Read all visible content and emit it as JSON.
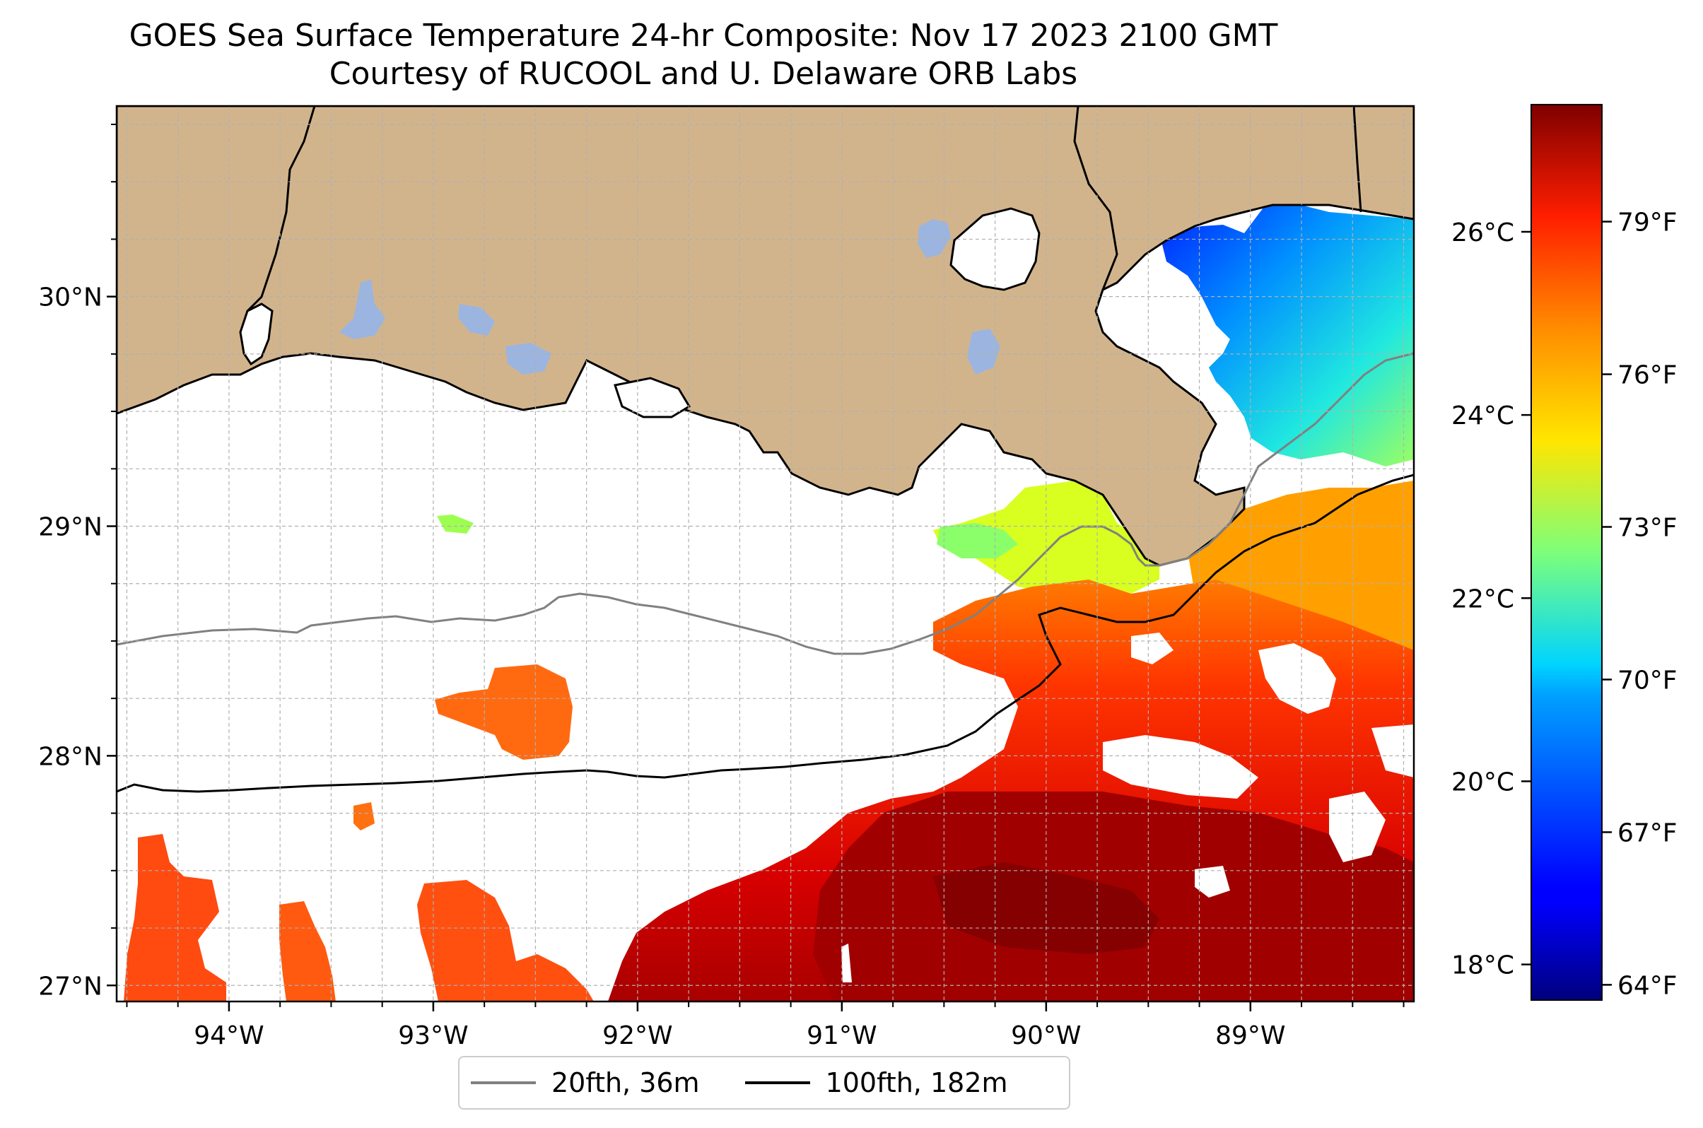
{
  "title": "GOES Sea Surface Temperature 24-hr Composite: Nov 17 2023 2100 GMT",
  "subtitle": "Courtesy of RUCOOL and U. Delaware ORB Labs",
  "colors": {
    "land": "#d2b48c",
    "lakes": "#9bb5e0",
    "coastline": "#000000",
    "isobath_20fth": "#808080",
    "isobath_100fth": "#000000",
    "grid": "#b0b0b0"
  },
  "map": {
    "lon_range": [
      -94.55,
      -88.2
    ],
    "lat_range": [
      26.93,
      30.83
    ],
    "lon_ticks": [
      {
        "value": -94,
        "label": "94°W"
      },
      {
        "value": -93,
        "label": "93°W"
      },
      {
        "value": -92,
        "label": "92°W"
      },
      {
        "value": -91,
        "label": "91°W"
      },
      {
        "value": -90,
        "label": "90°W"
      },
      {
        "value": -89,
        "label": "89°W"
      }
    ],
    "lat_ticks": [
      {
        "value": 30,
        "label": "30°N"
      },
      {
        "value": 29,
        "label": "29°N"
      },
      {
        "value": 28,
        "label": "28°N"
      },
      {
        "value": 27,
        "label": "27°N"
      }
    ],
    "gridlines": true
  },
  "colorbar": {
    "colormap": "jet",
    "fahrenheit_ticks": [
      {
        "value": 64,
        "label": "64°F"
      },
      {
        "value": 67,
        "label": "67°F"
      },
      {
        "value": 70,
        "label": "70°F"
      },
      {
        "value": 73,
        "label": "73°F"
      },
      {
        "value": 76,
        "label": "76°F"
      },
      {
        "value": 79,
        "label": "79°F"
      }
    ],
    "celsius_ticks": [
      {
        "value": 18,
        "label": "18°C"
      },
      {
        "value": 20,
        "label": "20°C"
      },
      {
        "value": 22,
        "label": "22°C"
      },
      {
        "value": 24,
        "label": "24°C"
      },
      {
        "value": 26,
        "label": "26°C"
      }
    ],
    "fahrenheit_range": [
      63.7,
      81.3
    ]
  },
  "legend": {
    "items": [
      {
        "label": "20fth, 36m",
        "color": "#808080"
      },
      {
        "label": "100fth, 182m",
        "color": "#000000"
      }
    ]
  }
}
